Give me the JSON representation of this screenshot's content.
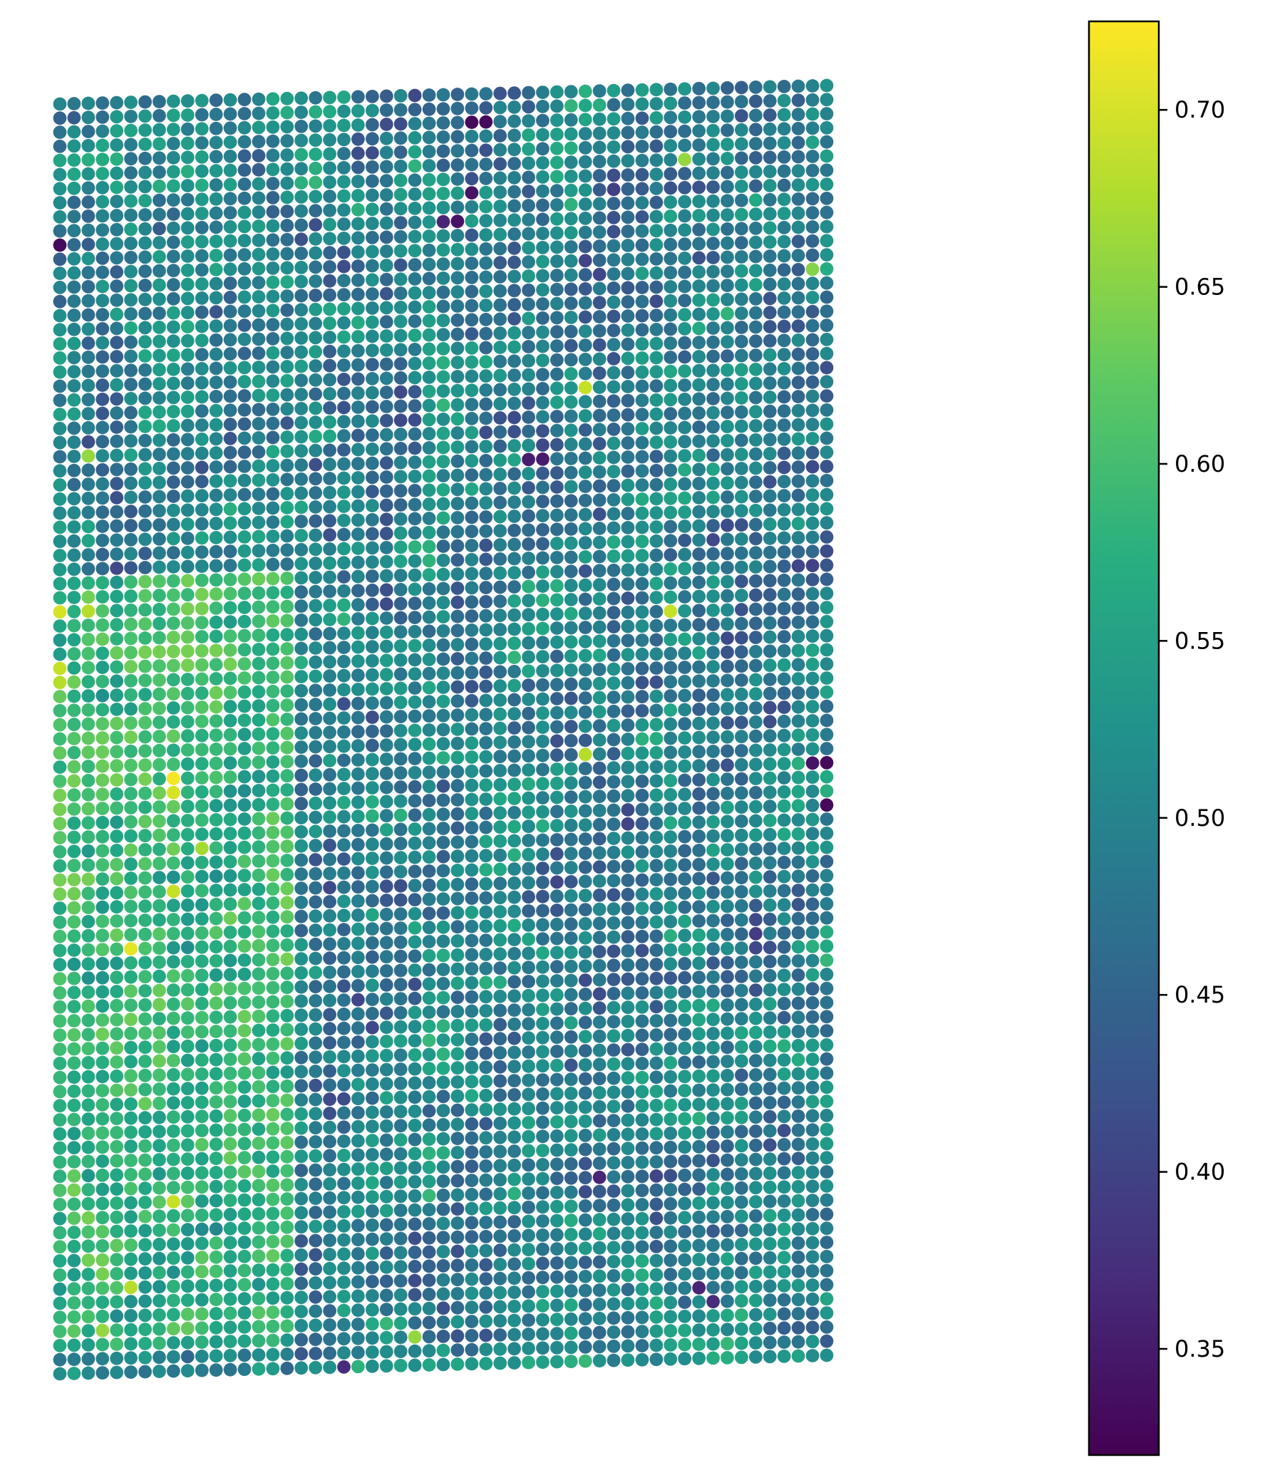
{
  "chart_data": {
    "type": "scatter",
    "title": "",
    "xlabel": "",
    "ylabel": "",
    "grid": false,
    "axes_visible": false,
    "marker": "filled circle",
    "grid_columns": 55,
    "grid_rows": 91,
    "lattice": "spatial spot grid, slightly skewed (right edge higher than left edge)",
    "color_value_range": [
      0.32,
      0.725
    ],
    "colormap": "viridis",
    "colorbar": {
      "position": "right",
      "ticks": [
        "0.35",
        "0.40",
        "0.45",
        "0.50",
        "0.55",
        "0.60",
        "0.65",
        "0.70"
      ],
      "tick_values": [
        0.35,
        0.4,
        0.45,
        0.5,
        0.55,
        0.6,
        0.65,
        0.7
      ],
      "range": [
        0.32,
        0.725
      ]
    },
    "value_distribution": {
      "typical_min": 0.42,
      "typical_max": 0.61,
      "median": 0.515
    },
    "notable_points": [
      {
        "col": 0,
        "row": 10,
        "value": 0.33
      },
      {
        "col": 29,
        "row": 2,
        "value": 0.33
      },
      {
        "col": 30,
        "row": 2,
        "value": 0.33
      },
      {
        "col": 29,
        "row": 7,
        "value": 0.34
      },
      {
        "col": 28,
        "row": 9,
        "value": 0.34
      },
      {
        "col": 27,
        "row": 9,
        "value": 0.36
      },
      {
        "col": 33,
        "row": 26,
        "value": 0.35
      },
      {
        "col": 34,
        "row": 26,
        "value": 0.35
      },
      {
        "col": 54,
        "row": 48,
        "value": 0.33
      },
      {
        "col": 53,
        "row": 48,
        "value": 0.34
      },
      {
        "col": 54,
        "row": 51,
        "value": 0.33
      },
      {
        "col": 20,
        "row": 90,
        "value": 0.37
      },
      {
        "col": 38,
        "row": 77,
        "value": 0.36
      },
      {
        "col": 45,
        "row": 85,
        "value": 0.36
      },
      {
        "col": 46,
        "row": 86,
        "value": 0.37
      },
      {
        "col": 0,
        "row": 36,
        "value": 0.7
      },
      {
        "col": 2,
        "row": 36,
        "value": 0.68
      },
      {
        "col": 0,
        "row": 40,
        "value": 0.69
      },
      {
        "col": 0,
        "row": 41,
        "value": 0.68
      },
      {
        "col": 8,
        "row": 48,
        "value": 0.72
      },
      {
        "col": 8,
        "row": 49,
        "value": 0.7
      },
      {
        "col": 5,
        "row": 60,
        "value": 0.71
      },
      {
        "col": 8,
        "row": 56,
        "value": 0.69
      },
      {
        "col": 43,
        "row": 37,
        "value": 0.69
      },
      {
        "col": 37,
        "row": 47,
        "value": 0.68
      },
      {
        "col": 37,
        "row": 21,
        "value": 0.69
      },
      {
        "col": 8,
        "row": 78,
        "value": 0.69
      },
      {
        "col": 5,
        "row": 84,
        "value": 0.68
      },
      {
        "col": 10,
        "row": 53,
        "value": 0.67
      },
      {
        "col": 44,
        "row": 5,
        "value": 0.66
      },
      {
        "col": 53,
        "row": 13,
        "value": 0.65
      },
      {
        "col": 2,
        "row": 25,
        "value": 0.66
      },
      {
        "col": 3,
        "row": 87,
        "value": 0.66
      },
      {
        "col": 25,
        "row": 88,
        "value": 0.66
      }
    ],
    "regions": [
      {
        "cols": [
          0,
          16
        ],
        "rows": [
          34,
          88
        ],
        "mean": 0.585,
        "spread": 0.055
      },
      {
        "cols": [
          17,
          54
        ],
        "rows": [
          0,
          89
        ],
        "mean": 0.49,
        "spread": 0.07
      },
      {
        "cols": [
          26,
          40
        ],
        "rows": [
          25,
          50
        ],
        "mean": 0.445,
        "spread": 0.045
      },
      {
        "cols": [
          42,
          54
        ],
        "rows": [
          60,
          76
        ],
        "mean": 0.56,
        "spread": 0.05
      },
      {
        "cols": [
          44,
          54
        ],
        "rows": [
          78,
          86
        ],
        "mean": 0.45,
        "spread": 0.05
      },
      {
        "cols": [
          0,
          54
        ],
        "rows": [
          0,
          34
        ],
        "mean": 0.5,
        "spread": 0.065
      }
    ]
  }
}
